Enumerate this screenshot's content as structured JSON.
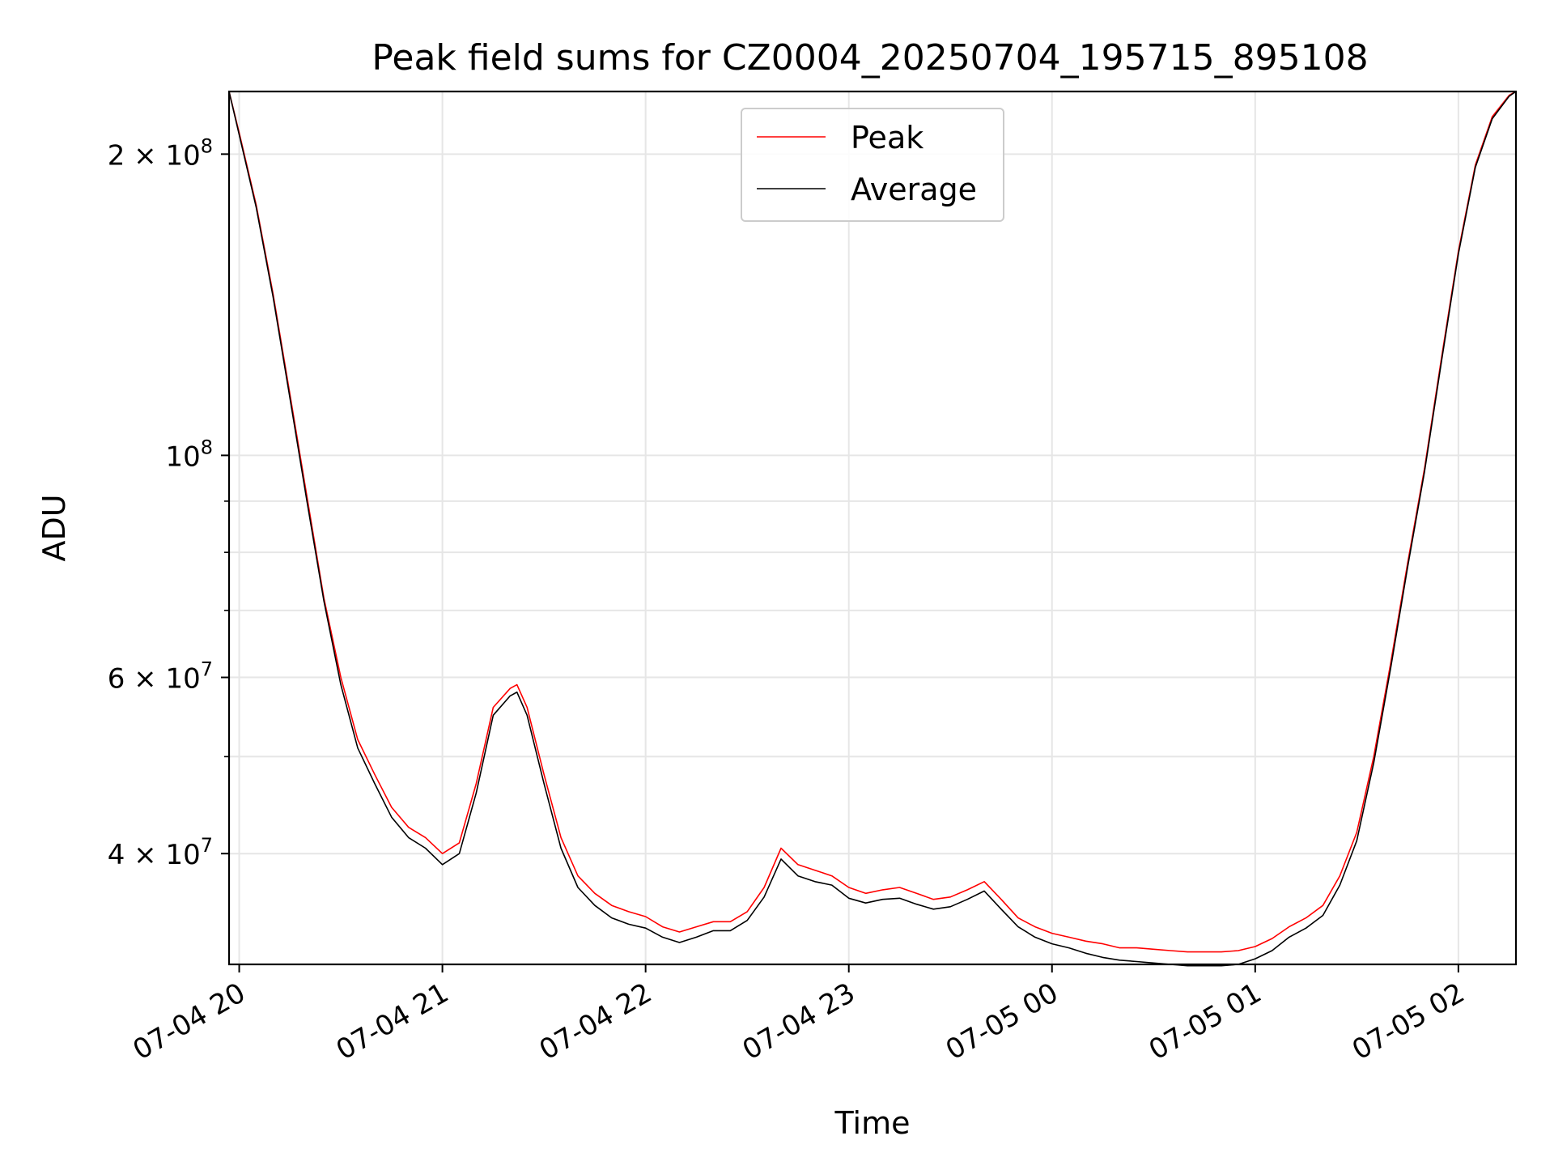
{
  "chart_data": {
    "type": "line",
    "title": "Peak field sums for CZ0004_20250704_195715_895108",
    "xlabel": "Time",
    "ylabel": "ADU",
    "yscale": "log",
    "grid": true,
    "legend_position": "upper center",
    "xlim": [
      "2025-07-04 19:57",
      "2025-07-05 02:17"
    ],
    "ylim": [
      31000000,
      231000000
    ],
    "x_ticks": [
      {
        "t": "2025-07-04 20:00",
        "label": "07-04 20"
      },
      {
        "t": "2025-07-04 21:00",
        "label": "07-04 21"
      },
      {
        "t": "2025-07-04 22:00",
        "label": "07-04 22"
      },
      {
        "t": "2025-07-04 23:00",
        "label": "07-04 23"
      },
      {
        "t": "2025-07-05 00:00",
        "label": "07-05 00"
      },
      {
        "t": "2025-07-05 01:00",
        "label": "07-05 01"
      },
      {
        "t": "2025-07-05 02:00",
        "label": "07-05 02"
      }
    ],
    "y_ticks_major": [
      {
        "value": 40000000,
        "mantissa": "4",
        "exponent": "7"
      },
      {
        "value": 60000000,
        "mantissa": "6",
        "exponent": "7"
      },
      {
        "value": 100000000,
        "mantissa": "",
        "exponent": "8"
      },
      {
        "value": 200000000,
        "mantissa": "2",
        "exponent": "8"
      }
    ],
    "y_ticks_minor": [
      50000000,
      70000000,
      80000000,
      90000000
    ],
    "series": [
      {
        "name": "Peak",
        "color": "#ff0000",
        "x": [
          "2025-07-04 19:57",
          "2025-07-04 20:00",
          "2025-07-04 20:05",
          "2025-07-04 20:10",
          "2025-07-04 20:15",
          "2025-07-04 20:20",
          "2025-07-04 20:25",
          "2025-07-04 20:30",
          "2025-07-04 20:35",
          "2025-07-04 20:40",
          "2025-07-04 20:45",
          "2025-07-04 20:50",
          "2025-07-04 20:55",
          "2025-07-04 21:00",
          "2025-07-04 21:05",
          "2025-07-04 21:10",
          "2025-07-04 21:15",
          "2025-07-04 21:20",
          "2025-07-04 21:22",
          "2025-07-04 21:25",
          "2025-07-04 21:30",
          "2025-07-04 21:35",
          "2025-07-04 21:40",
          "2025-07-04 21:45",
          "2025-07-04 21:50",
          "2025-07-04 21:55",
          "2025-07-04 22:00",
          "2025-07-04 22:05",
          "2025-07-04 22:10",
          "2025-07-04 22:15",
          "2025-07-04 22:20",
          "2025-07-04 22:25",
          "2025-07-04 22:30",
          "2025-07-04 22:35",
          "2025-07-04 22:40",
          "2025-07-04 22:45",
          "2025-07-04 22:50",
          "2025-07-04 22:55",
          "2025-07-04 23:00",
          "2025-07-04 23:05",
          "2025-07-04 23:10",
          "2025-07-04 23:15",
          "2025-07-04 23:20",
          "2025-07-04 23:25",
          "2025-07-04 23:30",
          "2025-07-04 23:35",
          "2025-07-04 23:40",
          "2025-07-04 23:45",
          "2025-07-04 23:50",
          "2025-07-04 23:55",
          "2025-07-05 00:00",
          "2025-07-05 00:05",
          "2025-07-05 00:10",
          "2025-07-05 00:15",
          "2025-07-05 00:20",
          "2025-07-05 00:25",
          "2025-07-05 00:30",
          "2025-07-05 00:35",
          "2025-07-05 00:40",
          "2025-07-05 00:45",
          "2025-07-05 00:50",
          "2025-07-05 00:55",
          "2025-07-05 01:00",
          "2025-07-05 01:05",
          "2025-07-05 01:10",
          "2025-07-05 01:15",
          "2025-07-05 01:20",
          "2025-07-05 01:25",
          "2025-07-05 01:30",
          "2025-07-05 01:35",
          "2025-07-05 01:40",
          "2025-07-05 01:45",
          "2025-07-05 01:50",
          "2025-07-05 01:55",
          "2025-07-05 02:00",
          "2025-07-05 02:05",
          "2025-07-05 02:10",
          "2025-07-05 02:15",
          "2025-07-05 02:17"
        ],
        "values": [
          231000000,
          210000000,
          178000000,
          145000000,
          115000000,
          91000000,
          72000000,
          60000000,
          52000000,
          48000000,
          44500000,
          42500000,
          41500000,
          40000000,
          41000000,
          47000000,
          56000000,
          58500000,
          59000000,
          56000000,
          48000000,
          41500000,
          38000000,
          36500000,
          35500000,
          35000000,
          34600000,
          33800000,
          33400000,
          33800000,
          34200000,
          34200000,
          35000000,
          37000000,
          40500000,
          39000000,
          38500000,
          38000000,
          37000000,
          36500000,
          36800000,
          37000000,
          36500000,
          36000000,
          36200000,
          36800000,
          37500000,
          36000000,
          34500000,
          33800000,
          33300000,
          33000000,
          32700000,
          32500000,
          32200000,
          32200000,
          32100000,
          32000000,
          31900000,
          31900000,
          31900000,
          32000000,
          32300000,
          32900000,
          33800000,
          34500000,
          35500000,
          38000000,
          42000000,
          50000000,
          62000000,
          78000000,
          97000000,
          125000000,
          160000000,
          195000000,
          218000000,
          229000000,
          231000000
        ]
      },
      {
        "name": "Average",
        "color": "#000000",
        "x": [
          "2025-07-04 19:57",
          "2025-07-04 20:00",
          "2025-07-04 20:05",
          "2025-07-04 20:10",
          "2025-07-04 20:15",
          "2025-07-04 20:20",
          "2025-07-04 20:25",
          "2025-07-04 20:30",
          "2025-07-04 20:35",
          "2025-07-04 20:40",
          "2025-07-04 20:45",
          "2025-07-04 20:50",
          "2025-07-04 20:55",
          "2025-07-04 21:00",
          "2025-07-04 21:05",
          "2025-07-04 21:10",
          "2025-07-04 21:15",
          "2025-07-04 21:20",
          "2025-07-04 21:22",
          "2025-07-04 21:25",
          "2025-07-04 21:30",
          "2025-07-04 21:35",
          "2025-07-04 21:40",
          "2025-07-04 21:45",
          "2025-07-04 21:50",
          "2025-07-04 21:55",
          "2025-07-04 22:00",
          "2025-07-04 22:05",
          "2025-07-04 22:10",
          "2025-07-04 22:15",
          "2025-07-04 22:20",
          "2025-07-04 22:25",
          "2025-07-04 22:30",
          "2025-07-04 22:35",
          "2025-07-04 22:40",
          "2025-07-04 22:45",
          "2025-07-04 22:50",
          "2025-07-04 22:55",
          "2025-07-04 23:00",
          "2025-07-04 23:05",
          "2025-07-04 23:10",
          "2025-07-04 23:15",
          "2025-07-04 23:20",
          "2025-07-04 23:25",
          "2025-07-04 23:30",
          "2025-07-04 23:35",
          "2025-07-04 23:40",
          "2025-07-04 23:45",
          "2025-07-04 23:50",
          "2025-07-04 23:55",
          "2025-07-05 00:00",
          "2025-07-05 00:05",
          "2025-07-05 00:10",
          "2025-07-05 00:15",
          "2025-07-05 00:20",
          "2025-07-05 00:25",
          "2025-07-05 00:30",
          "2025-07-05 00:35",
          "2025-07-05 00:40",
          "2025-07-05 00:45",
          "2025-07-05 00:50",
          "2025-07-05 00:55",
          "2025-07-05 01:00",
          "2025-07-05 01:05",
          "2025-07-05 01:10",
          "2025-07-05 01:15",
          "2025-07-05 01:20",
          "2025-07-05 01:25",
          "2025-07-05 01:30",
          "2025-07-05 01:35",
          "2025-07-05 01:40",
          "2025-07-05 01:45",
          "2025-07-05 01:50",
          "2025-07-05 01:55",
          "2025-07-05 02:00",
          "2025-07-05 02:05",
          "2025-07-05 02:10",
          "2025-07-05 02:15",
          "2025-07-05 02:17"
        ],
        "values": [
          231000000,
          209000000,
          177000000,
          144000000,
          114000000,
          90000000,
          71500000,
          59000000,
          51000000,
          47000000,
          43500000,
          41500000,
          40500000,
          39000000,
          40000000,
          46000000,
          55000000,
          57500000,
          58000000,
          55000000,
          47000000,
          40500000,
          37000000,
          35500000,
          34500000,
          34000000,
          33700000,
          33000000,
          32600000,
          33000000,
          33500000,
          33500000,
          34300000,
          36200000,
          39500000,
          38000000,
          37500000,
          37200000,
          36100000,
          35700000,
          36000000,
          36100000,
          35600000,
          35200000,
          35400000,
          36000000,
          36700000,
          35200000,
          33800000,
          33000000,
          32500000,
          32200000,
          31800000,
          31500000,
          31300000,
          31200000,
          31100000,
          31000000,
          30900000,
          30900000,
          30900000,
          31000000,
          31400000,
          32000000,
          33000000,
          33700000,
          34700000,
          37200000,
          41200000,
          49300000,
          61300000,
          77300000,
          96300000,
          124000000,
          159000000,
          194000000,
          217000000,
          228500000,
          231000000
        ]
      }
    ]
  }
}
